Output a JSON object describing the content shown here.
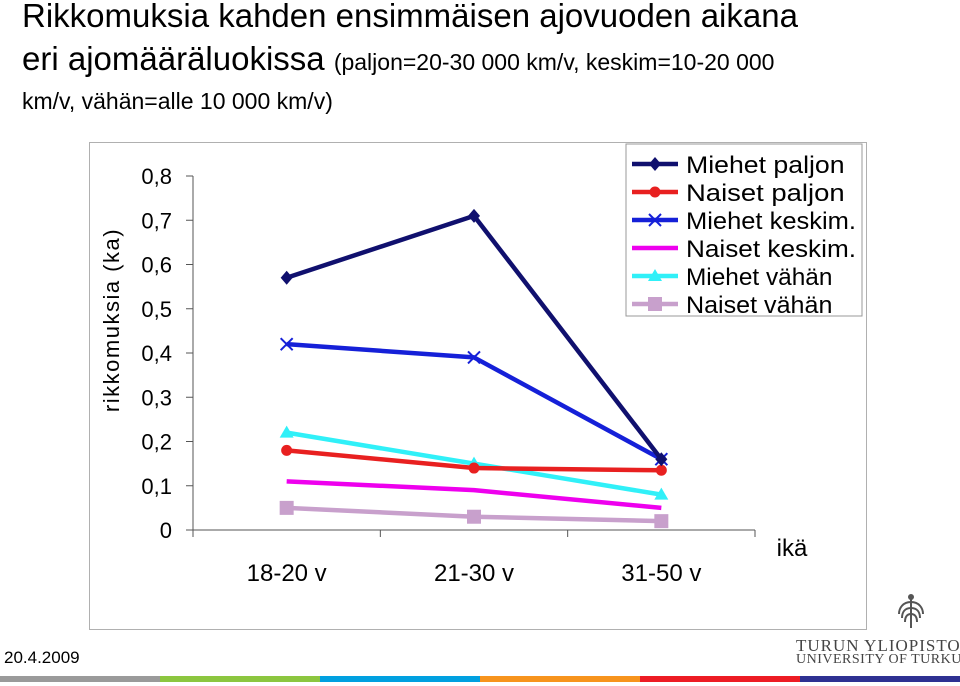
{
  "slide": {
    "title_line1": "Rikkomuksia kahden ensimmäisen ajovuoden aikana",
    "title_line2_main": "eri ajomääräluokissa ",
    "title_line2_note": "(paljon=20-30 000 km/v, keskim=10-20 000",
    "title_line3_note": "km/v, vähän=alle 10 000 km/v)",
    "date": "20.4.2009",
    "logo_line1": "TURUN YLIOPISTO",
    "logo_line2": "UNIVERSITY OF TURKU"
  },
  "chart_data": {
    "type": "line",
    "ylabel": "rikkomuksia (ka)",
    "xlabel": "ikä",
    "categories": [
      "18-20 v",
      "21-30 v",
      "31-50 v"
    ],
    "ylim": [
      0,
      0.8
    ],
    "yticks": [
      "0",
      "0,1",
      "0,2",
      "0,3",
      "0,4",
      "0,5",
      "0,6",
      "0,7",
      "0,8"
    ],
    "grid": false,
    "legend_position": "top-right",
    "series": [
      {
        "name": "Miehet paljon",
        "values": [
          0.57,
          0.71,
          0.16
        ],
        "color": "#10106e",
        "marker": "diamond"
      },
      {
        "name": "Naiset paljon",
        "values": [
          0.18,
          0.14,
          0.135
        ],
        "color": "#e82020",
        "marker": "circle"
      },
      {
        "name": "Miehet keskim.",
        "values": [
          0.42,
          0.39,
          0.16
        ],
        "color": "#1520d8",
        "marker": "x"
      },
      {
        "name": "Naiset keskim.",
        "values": [
          0.11,
          0.09,
          0.05
        ],
        "color": "#ee00ee",
        "marker": "none"
      },
      {
        "name": "Miehet vähän",
        "values": [
          0.22,
          0.15,
          0.08
        ],
        "color": "#30f0f8",
        "marker": "triangle"
      },
      {
        "name": "Naiset vähän",
        "values": [
          0.05,
          0.03,
          0.02
        ],
        "color": "#c8a0cc",
        "marker": "square"
      }
    ]
  },
  "stripe_colors": [
    "#9a9a9a",
    "#8cc63f",
    "#00a0e0",
    "#f7941d",
    "#ed1c24",
    "#2e3192"
  ]
}
